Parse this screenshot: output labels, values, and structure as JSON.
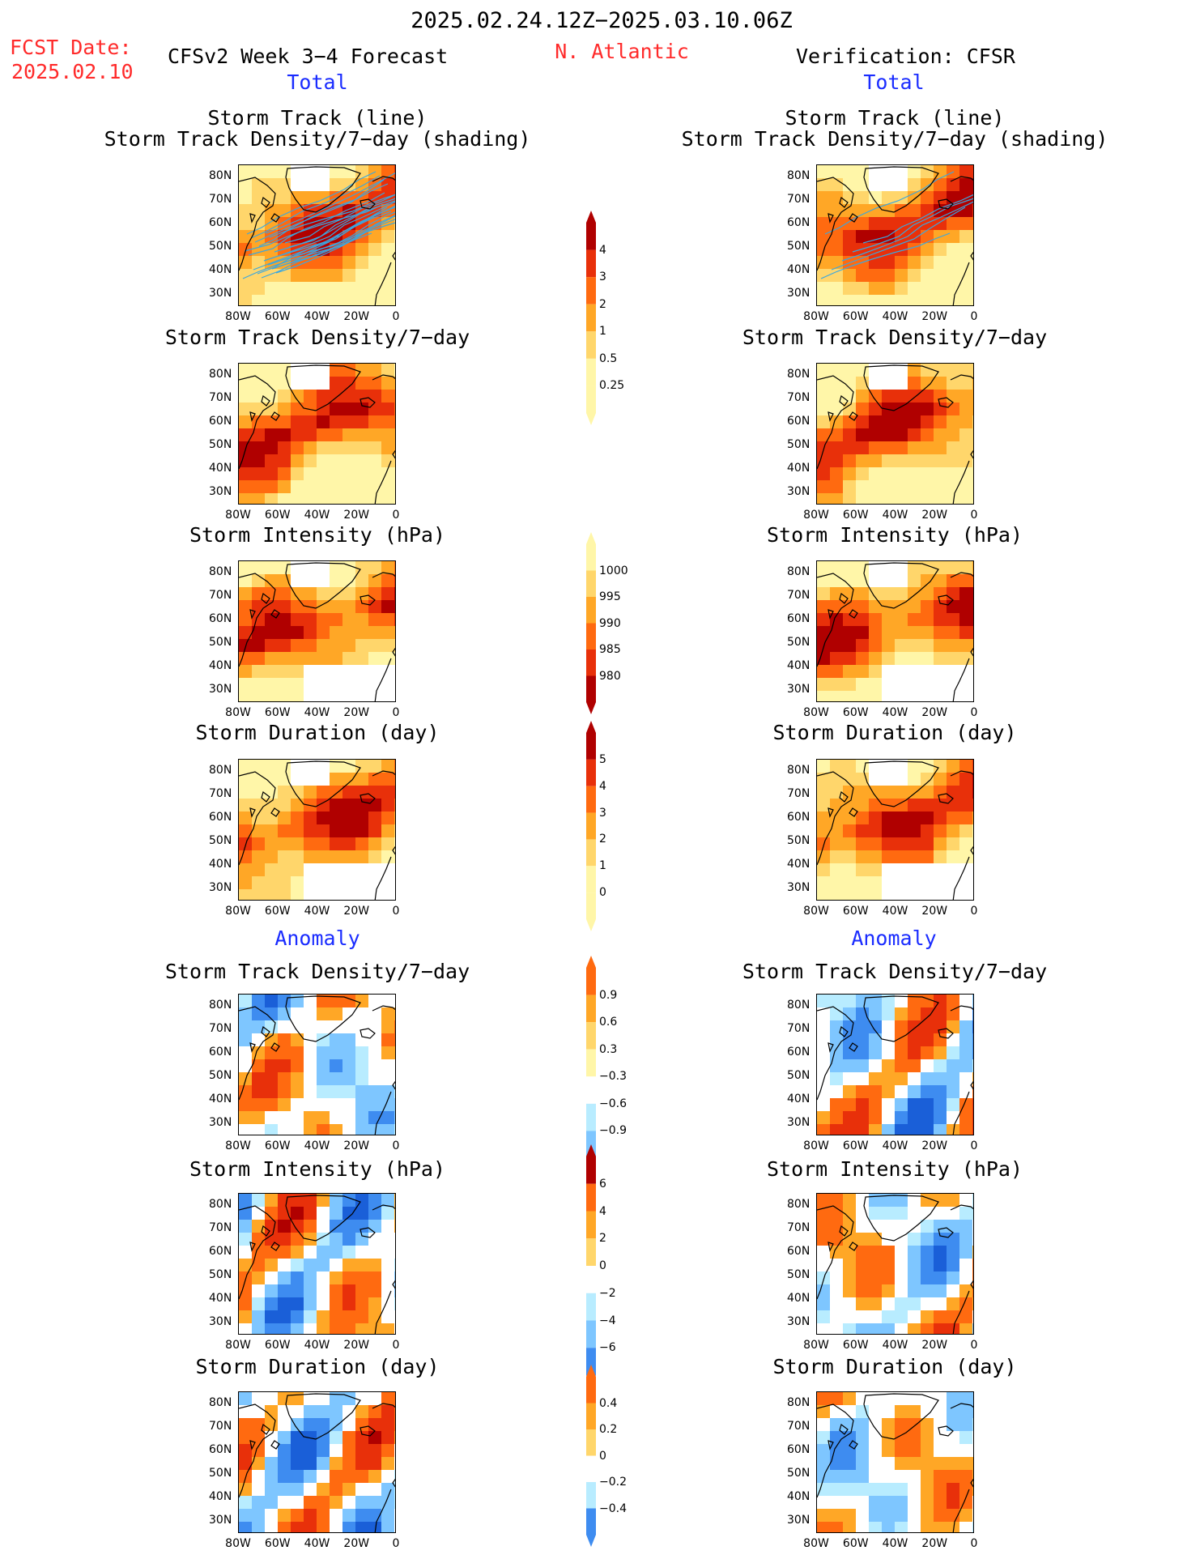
{
  "header": {
    "period": "2025.02.24.12Z−2025.03.10.06Z",
    "fcst_label": "FCST Date:",
    "fcst_date": "2025.02.10",
    "model": "CFSv2 Week 3−4 Forecast",
    "region": "N. Atlantic",
    "verification": "Verification: CFSR",
    "total_left": "Total",
    "total_right": "Total",
    "anomaly_left": "Anomaly",
    "anomaly_right": "Anomaly"
  },
  "titles": {
    "track_line": "Storm Track (line)",
    "track_shading": "Storm Track Density/7−day (shading)",
    "density": "Storm Track Density/7−day",
    "intensity": "Storm Intensity (hPa)",
    "duration": "Storm Duration (day)"
  },
  "axes": {
    "lat": [
      "80N",
      "70N",
      "60N",
      "50N",
      "40N",
      "30N"
    ],
    "lon": [
      "80W",
      "60W",
      "40W",
      "20W",
      "0"
    ]
  },
  "colorbars": {
    "density_total": [
      "4",
      "3",
      "2",
      "1",
      "0.5",
      "0.25"
    ],
    "intensity_total": [
      "1000",
      "995",
      "990",
      "985",
      "980"
    ],
    "duration_total": [
      "5",
      "4",
      "3",
      "2",
      "1",
      "0"
    ],
    "density_anom": [
      "0.9",
      "0.6",
      "0.3",
      "−0.3",
      "−0.6",
      "−0.9"
    ],
    "intensity_anom": [
      "6",
      "4",
      "2",
      "0",
      "−2",
      "−4",
      "−6"
    ],
    "duration_anom": [
      "0.4",
      "0.2",
      "0",
      "−0.2",
      "−0.4"
    ]
  },
  "colors": {
    "warm": [
      "#fff6a8",
      "#ffd66b",
      "#ffa726",
      "#ff6a10",
      "#e8300a",
      "#b00000"
    ],
    "cool": [
      "#b8ecff",
      "#7ec6ff",
      "#3e8cf0",
      "#1a5fd8"
    ],
    "track_line": "#3aa7e0",
    "title_red": "#ff2a2a",
    "title_blue": "#1a2cff"
  }
}
